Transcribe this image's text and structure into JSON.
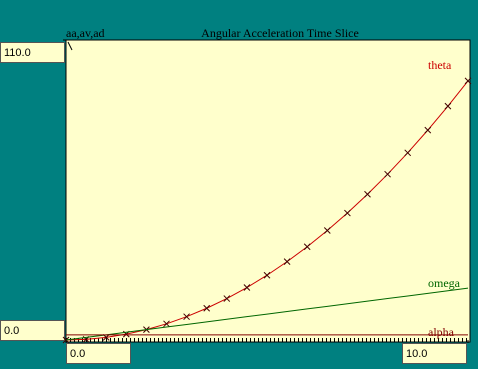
{
  "chart_data": {
    "type": "line",
    "title": "Angular Acceleration Time Slice",
    "ylabel": "aa,av,ad",
    "x": [
      0,
      0.5,
      1,
      1.5,
      2,
      2.5,
      3,
      3.5,
      4,
      4.5,
      5,
      5.5,
      6,
      6.5,
      7,
      7.5,
      8,
      8.5,
      9,
      9.5,
      10
    ],
    "series": [
      {
        "name": "theta",
        "color": "#cc0000",
        "marker_color": "#400000",
        "values": [
          0,
          0.24,
          0.95,
          2.14,
          3.8,
          5.94,
          8.55,
          11.64,
          15.2,
          19.24,
          23.75,
          28.74,
          34.2,
          40.14,
          46.55,
          53.44,
          60.8,
          68.64,
          76.95,
          85.74,
          95
        ]
      },
      {
        "name": "omega",
        "color": "#006600",
        "values": [
          0,
          0.95,
          1.9,
          2.85,
          3.8,
          4.75,
          5.7,
          6.65,
          7.6,
          8.55,
          9.5,
          10.45,
          11.4,
          12.35,
          13.3,
          14.25,
          15.2,
          16.15,
          17.1,
          18.05,
          19
        ]
      },
      {
        "name": "alpha",
        "color": "#800000",
        "values": [
          1.9,
          1.9,
          1.9,
          1.9,
          1.9,
          1.9,
          1.9,
          1.9,
          1.9,
          1.9,
          1.9,
          1.9,
          1.9,
          1.9,
          1.9,
          1.9,
          1.9,
          1.9,
          1.9,
          1.9,
          1.9
        ]
      }
    ],
    "xlim": [
      0,
      10
    ],
    "ylim": [
      0,
      110
    ],
    "xticks": [
      {
        "value": 0,
        "label": "0.0"
      },
      {
        "value": 10,
        "label": "10.0"
      }
    ],
    "yticks": [
      {
        "value": 0,
        "label": "0.0"
      },
      {
        "value": 110,
        "label": "110.0"
      }
    ]
  }
}
